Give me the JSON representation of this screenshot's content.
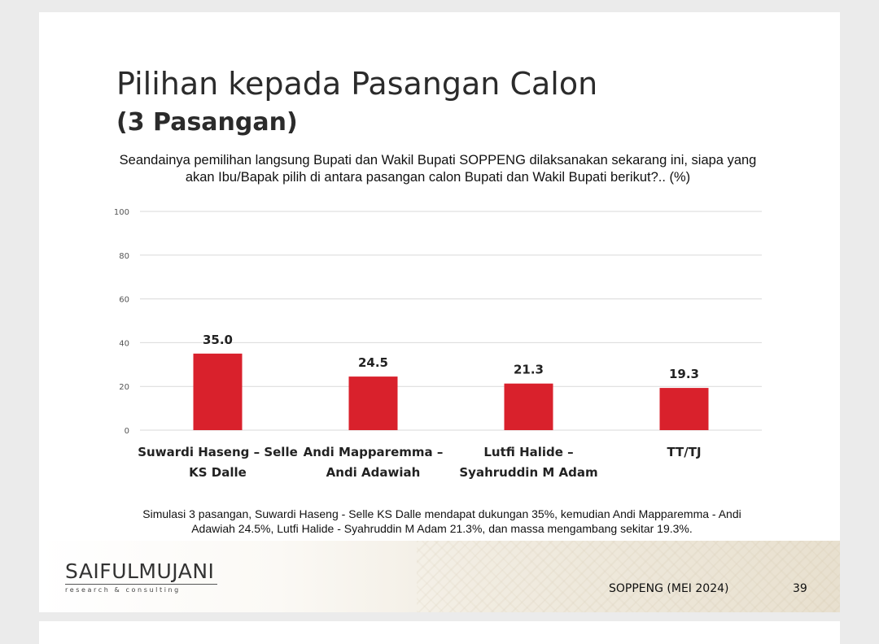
{
  "slide": {
    "title": "Pilihan kepada Pasangan Calon",
    "subtitle": "(3 Pasangan)",
    "question_line1": "Seandainya pemilihan langsung Bupati dan Wakil Bupati SOPPENG dilaksanakan sekarang ini, siapa yang",
    "question_line2": "akan Ibu/Bapak pilih di antara pasangan calon Bupati dan Wakil Bupati berikut?.. (%)",
    "note_line1": "Simulasi 3 pasangan, Suwardi Haseng - Selle KS Dalle mendapat dukungan 35%, kemudian Andi Mapparemma - Andi",
    "note_line2": "Adawiah 24.5%, Lutfi Halide - Syahruddin M Adam 21.3%, dan massa mengambang sekitar 19.3%.",
    "logo_name": "SAIFULMUJANI",
    "logo_tagline": "research & consulting",
    "footer_label": "SOPPENG (MEI 2024)",
    "page_number": "39"
  },
  "chart_data": {
    "type": "bar",
    "categories": [
      [
        "Suwardi Haseng – Selle",
        "KS Dalle"
      ],
      [
        "Andi Mapparemma –",
        "Andi Adawiah"
      ],
      [
        "Lutfi Halide –",
        "Syahruddin M Adam"
      ],
      [
        "TT/TJ"
      ]
    ],
    "values": [
      35.0,
      24.5,
      21.3,
      19.3
    ],
    "data_labels": [
      "35.0",
      "24.5",
      "21.3",
      "19.3"
    ],
    "yticks": [
      "0",
      "20",
      "40",
      "60",
      "80",
      "100"
    ],
    "ylim": [
      0,
      100
    ],
    "grid": true,
    "bar_color": "#d9212c"
  },
  "colors": {
    "bar": "#d9212c",
    "grid": "#d9d9d9"
  }
}
